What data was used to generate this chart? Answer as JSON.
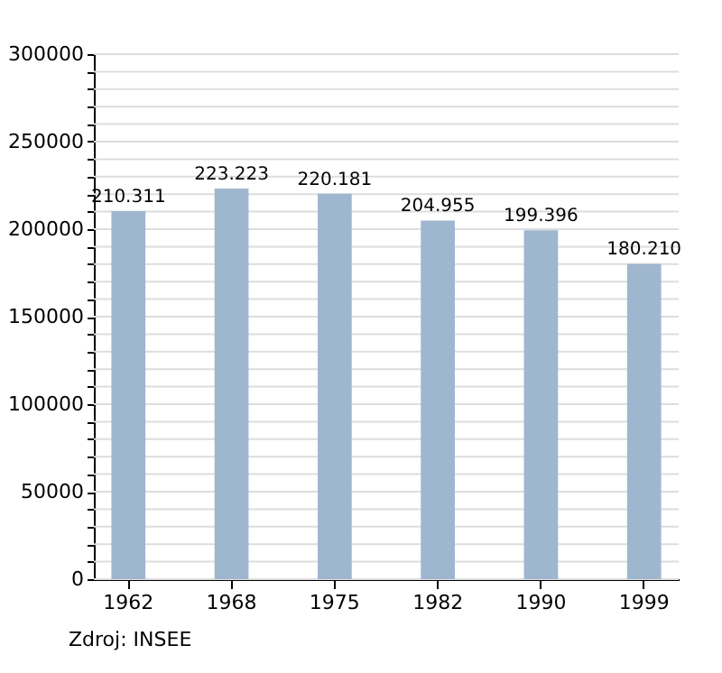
{
  "chart_data": {
    "type": "bar",
    "categories": [
      "1962",
      "1968",
      "1975",
      "1982",
      "1990",
      "1999"
    ],
    "values": [
      210311,
      223223,
      220181,
      204955,
      199396,
      180210
    ],
    "value_labels": [
      "210.311",
      "223.223",
      "220.181",
      "204.955",
      "199.396",
      "180.210"
    ],
    "color": "#9fb6cf",
    "ylim": [
      0,
      300000
    ],
    "yticks": [
      0,
      {
        "value": 10000,
        "label": null
      },
      {
        "value": 20000,
        "label": null
      },
      {
        "value": 30000,
        "label": null
      },
      {
        "value": 40000,
        "label": null
      },
      50000,
      {
        "value": 60000,
        "label": null
      },
      {
        "value": 70000,
        "label": null
      },
      {
        "value": 80000,
        "label": null
      },
      {
        "value": 90000,
        "label": null
      },
      100000,
      {
        "value": 110000,
        "label": null
      },
      {
        "value": 120000,
        "label": null
      },
      {
        "value": 130000,
        "label": null
      },
      {
        "value": 140000,
        "label": null
      },
      150000,
      {
        "value": 160000,
        "label": null
      },
      {
        "value": 170000,
        "label": null
      },
      {
        "value": 180000,
        "label": null
      },
      {
        "value": 190000,
        "label": null
      },
      200000,
      {
        "value": 210000,
        "label": null
      },
      {
        "value": 220000,
        "label": null
      },
      {
        "value": 230000,
        "label": null
      },
      {
        "value": 240000,
        "label": null
      },
      250000,
      {
        "value": 260000,
        "label": null
      },
      {
        "value": 270000,
        "label": null
      },
      {
        "value": 280000,
        "label": null
      },
      {
        "value": 290000,
        "label": null
      },
      300000
    ],
    "grid": "y",
    "annotations": [
      "Zdroj: INSEE"
    ]
  }
}
